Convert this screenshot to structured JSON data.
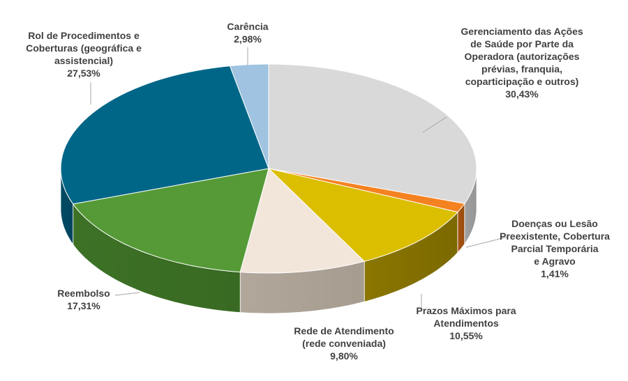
{
  "chart_data": {
    "type": "pie",
    "style": "3d",
    "slices": [
      {
        "label": "Gerenciamento das Ações de Saúde por Parte da Operadora (autorizações prévias, franquia, coparticipação e outros)",
        "lines": [
          "Gerenciamento das Ações",
          "de Saúde por Parte da",
          "Operadora (autorizações",
          "prévias, franquia,",
          "coparticipação e outros)"
        ],
        "value": 30.43,
        "value_label": "30,43%",
        "color": "#d9d9d9",
        "side": "#7f7f7f"
      },
      {
        "label": "Doenças ou Lesão Preexistente, Cobertura Parcial Temporária e Agravo",
        "lines": [
          "Doenças ou Lesão",
          "Preexistente, Cobertura",
          "Parcial Temporária",
          "e Agravo"
        ],
        "value": 1.41,
        "value_label": "1,41%",
        "color": "#f58220",
        "side": "#7a3a08"
      },
      {
        "label": "Prazos Máximos para Atendimentos",
        "lines": [
          "Prazos Máximos para",
          "Atendimentos"
        ],
        "value": 10.55,
        "value_label": "10,55%",
        "color": "#dbbe00",
        "side": "#5c4d00"
      },
      {
        "label": "Rede de Atendimento (rede conveniada)",
        "lines": [
          "Rede de Atendimento",
          "(rede conveniada)"
        ],
        "value": 9.8,
        "value_label": "9,80%",
        "color": "#f2e6da",
        "side": "#8c8377"
      },
      {
        "label": "Reembolso",
        "lines": [
          "Reembolso"
        ],
        "value": 17.31,
        "value_label": "17,31%",
        "color": "#559a37",
        "side": "#2f5a1c"
      },
      {
        "label": "Rol de Procedimentos e Coberturas (geográfica e assistencial)",
        "lines": [
          "Rol de Procedimentos e",
          "Coberturas (geográfica e",
          "assistencial)"
        ],
        "value": 27.53,
        "value_label": "27,53%",
        "color": "#006688",
        "side": "#003a50"
      },
      {
        "label": "Carência",
        "lines": [
          "Carência"
        ],
        "value": 2.98,
        "value_label": "2,98%",
        "color": "#9fc3e0",
        "side": "#5a7a92"
      }
    ],
    "start": "top",
    "direction": "clockwise",
    "legend": "none"
  }
}
